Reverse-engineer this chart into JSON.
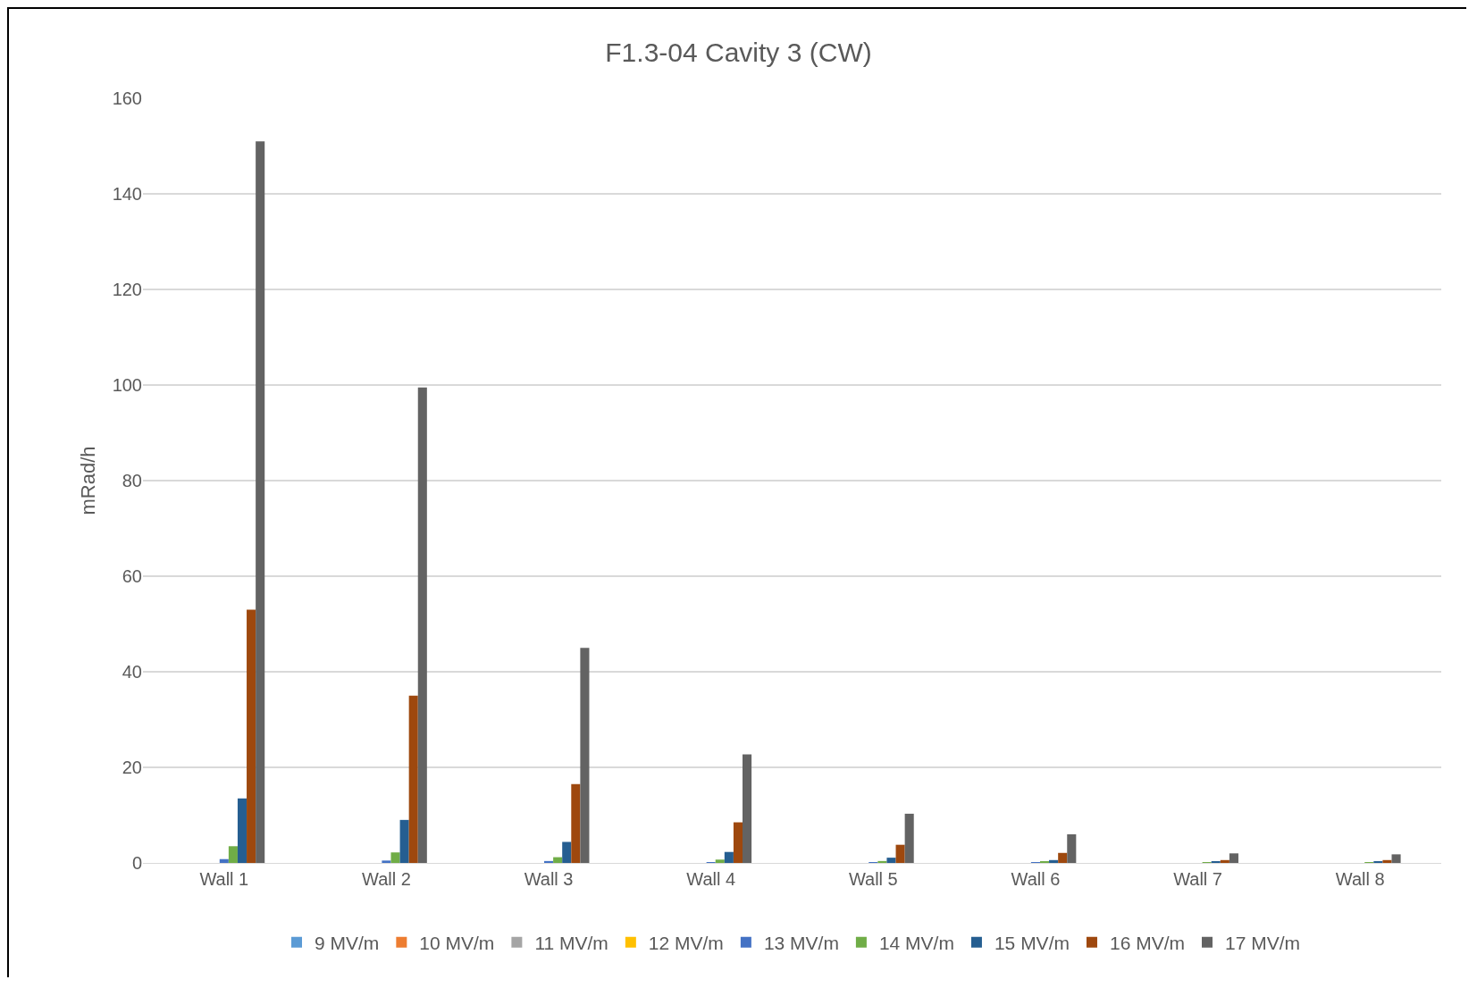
{
  "chart_data": {
    "type": "bar",
    "title": "F1.3-04 Cavity 3 (CW)",
    "ylabel": "mRad/h",
    "categories": [
      "Wall 1",
      "Wall 2",
      "Wall 3",
      "Wall 4",
      "Wall 5",
      "Wall 6",
      "Wall 7",
      "Wall 8"
    ],
    "series": [
      {
        "name": "9 MV/m",
        "color": "#5b9bd5",
        "values": [
          0,
          0,
          0,
          0,
          0,
          0,
          0,
          0
        ]
      },
      {
        "name": "10 MV/m",
        "color": "#ed7d31",
        "values": [
          0,
          0,
          0,
          0,
          0,
          0,
          0,
          0
        ]
      },
      {
        "name": "11 MV/m",
        "color": "#a5a5a5",
        "values": [
          0,
          0,
          0,
          0,
          0,
          0,
          0,
          0
        ]
      },
      {
        "name": "12 MV/m",
        "color": "#ffc000",
        "values": [
          0,
          0,
          0,
          0,
          0,
          0,
          0,
          0
        ]
      },
      {
        "name": "13 MV/m",
        "color": "#4472c4",
        "values": [
          0.8,
          0.5,
          0.4,
          0.1,
          0.1,
          0.1,
          0,
          0
        ]
      },
      {
        "name": "14 MV/m",
        "color": "#70ad47",
        "values": [
          3.5,
          2.2,
          1.2,
          0.7,
          0.4,
          0.2,
          0.1,
          0.1
        ]
      },
      {
        "name": "15 MV/m",
        "color": "#255e91",
        "values": [
          13.5,
          9,
          4.4,
          2.3,
          1.1,
          0.6,
          0.3,
          0.2
        ]
      },
      {
        "name": "16 MV/m",
        "color": "#9e480e",
        "values": [
          53,
          35,
          16.5,
          8.5,
          3.8,
          2.1,
          0.6,
          0.6
        ]
      },
      {
        "name": "17 MV/m",
        "color": "#636363",
        "values": [
          151,
          99.5,
          45,
          22.7,
          10.3,
          6,
          2,
          1.8
        ]
      }
    ],
    "ylim": [
      0,
      160
    ],
    "yticks": [
      0,
      20,
      40,
      60,
      80,
      100,
      120,
      140,
      160
    ],
    "grid": "y",
    "legend": "bottom"
  }
}
